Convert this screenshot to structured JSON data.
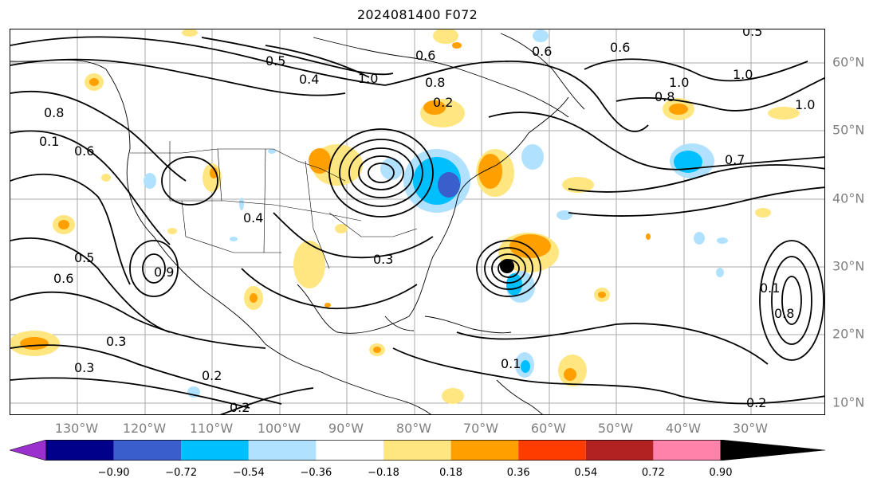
{
  "title": "2024081400 F072",
  "lon_labels": [
    "130°W",
    "120°W",
    "110°W",
    "100°W",
    "90°W",
    "80°W",
    "70°W",
    "60°W",
    "50°W",
    "40°W",
    "30°W"
  ],
  "lat_labels": [
    "60°N",
    "50°N",
    "40°N",
    "30°N",
    "20°N",
    "10°N"
  ],
  "colorbar": {
    "ticks": [
      "−0.90",
      "−0.72",
      "−0.54",
      "−0.36",
      "−0.18",
      "0.18",
      "0.36",
      "0.54",
      "0.72",
      "0.90"
    ],
    "colors": [
      "#9a30cd",
      "#00008b",
      "#3a5fcd",
      "#00bfff",
      "#b0e2ff",
      "#ffffff",
      "#ffe680",
      "#ffa000",
      "#ff3c00",
      "#b22222",
      "#ff82ab"
    ]
  },
  "contour_labels": [
    "1.0",
    "1.0",
    "1.0",
    "1.0",
    "0.8",
    "0.8",
    "0.8",
    "0.8",
    "0.7",
    "0.6",
    "0.6",
    "0.6",
    "0.6",
    "0.6",
    "0.5",
    "0.5",
    "0.5",
    "0.4",
    "0.4",
    "0.3",
    "0.3",
    "0.3",
    "0.2",
    "0.2",
    "0.2",
    "0.2",
    "0.1",
    "0.1",
    "0.9",
    "0.1"
  ],
  "colors": {
    "contour": "#000000",
    "grid": "#999999",
    "axis_labels": "#808080"
  }
}
